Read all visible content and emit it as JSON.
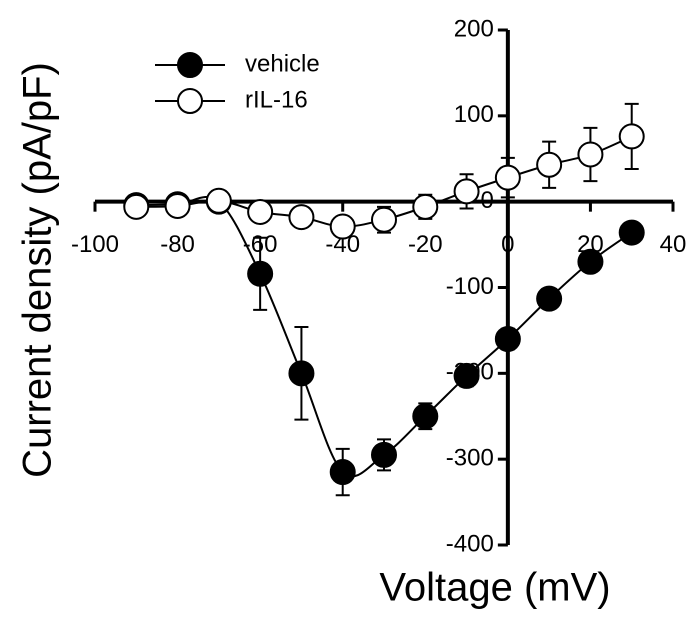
{
  "chart_data": {
    "type": "line",
    "x_label": "Voltage (mV)",
    "y_label": "Current density (pA/pF)",
    "x": [
      -90,
      -80,
      -70,
      -60,
      -50,
      -40,
      -30,
      -20,
      -10,
      0,
      10,
      20,
      30
    ],
    "series": [
      {
        "name": "vehicle",
        "color": "#000000",
        "marker_fill": "#000000",
        "values": [
          -4,
          -3,
          0,
          -84,
          -200,
          -315,
          -295,
          -250,
          -203,
          -160,
          -113,
          -70,
          -36
        ],
        "errors": [
          3,
          3,
          3,
          42,
          54,
          27,
          18,
          15,
          12,
          12,
          10,
          10,
          5
        ]
      },
      {
        "name": "rIL-16",
        "color": "#000000",
        "marker_fill": "#ffffff",
        "values": [
          -6,
          -5,
          1,
          -12,
          -18,
          -29,
          -21,
          -6,
          12,
          28,
          43,
          55,
          76
        ],
        "errors": [
          3,
          3,
          3,
          6,
          8,
          10,
          15,
          14,
          20,
          23,
          27,
          31,
          38
        ]
      }
    ],
    "xlim": [
      -100,
      40
    ],
    "xticks": [
      -100,
      -80,
      -60,
      -40,
      -20,
      0,
      20,
      40
    ],
    "ylim": [
      -400,
      200
    ],
    "yticks": [
      -400,
      -300,
      -200,
      -100,
      0,
      100,
      200
    ],
    "legend": "upper left"
  }
}
